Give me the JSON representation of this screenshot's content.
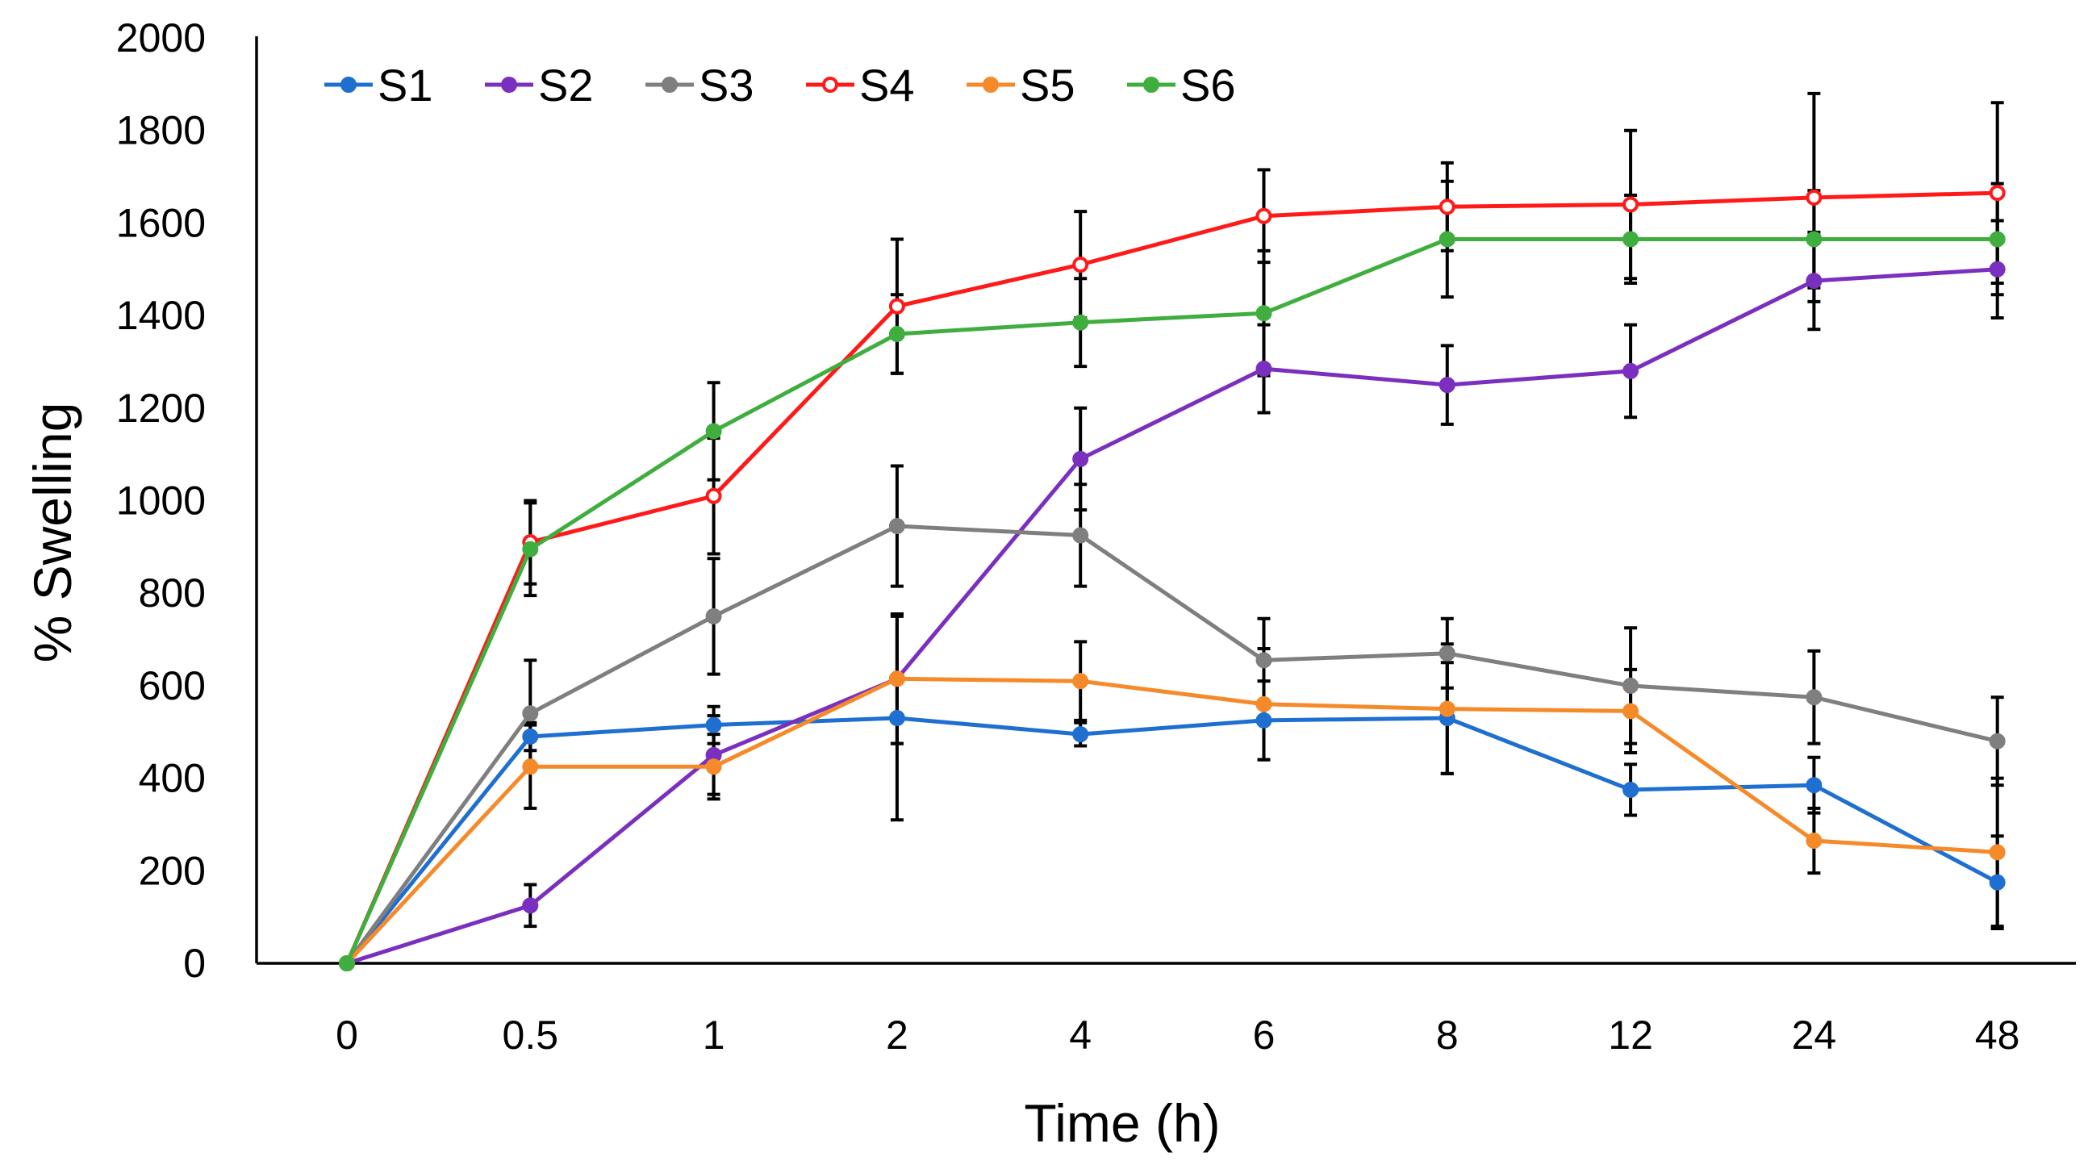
{
  "chart_data": {
    "type": "line",
    "title": "",
    "xlabel": "Time (h)",
    "ylabel": "% Swelling",
    "categories": [
      "0",
      "0.5",
      "1",
      "2",
      "4",
      "6",
      "8",
      "12",
      "24",
      "48"
    ],
    "y_ticks": [
      "0",
      "200",
      "400",
      "600",
      "800",
      "1000",
      "1200",
      "1400",
      "1600",
      "1800",
      "2000"
    ],
    "ylim": [
      0,
      2000
    ],
    "grid": false,
    "legend_position": "top-left",
    "series": [
      {
        "name": "S1",
        "color": "#1f6fd0",
        "marker": "filled-circle",
        "values": [
          0,
          490,
          515,
          530,
          495,
          525,
          530,
          375,
          385,
          175
        ],
        "errors": [
          0,
          30,
          40,
          220,
          25,
          85,
          120,
          55,
          60,
          100
        ]
      },
      {
        "name": "S2",
        "color": "#7b2fbe",
        "marker": "filled-circle",
        "values": [
          0,
          125,
          450,
          615,
          1090,
          1285,
          1250,
          1280,
          1475,
          1500
        ],
        "errors": [
          0,
          45,
          85,
          140,
          110,
          95,
          85,
          100,
          105,
          105
        ]
      },
      {
        "name": "S3",
        "color": "#7f7f7f",
        "marker": "filled-circle",
        "values": [
          0,
          540,
          750,
          945,
          925,
          655,
          670,
          600,
          575,
          480
        ],
        "errors": [
          0,
          115,
          125,
          130,
          110,
          90,
          75,
          125,
          100,
          95
        ]
      },
      {
        "name": "S4",
        "color": "#ff1a1a",
        "marker": "open-circle",
        "values": [
          0,
          910,
          1010,
          1420,
          1510,
          1615,
          1635,
          1640,
          1655,
          1665
        ],
        "errors": [
          0,
          90,
          125,
          145,
          115,
          100,
          95,
          160,
          225,
          195
        ]
      },
      {
        "name": "S5",
        "color": "#f58a2a",
        "marker": "filled-circle",
        "values": [
          0,
          425,
          425,
          615,
          610,
          560,
          550,
          545,
          265,
          240
        ],
        "errors": [
          0,
          90,
          70,
          140,
          85,
          120,
          140,
          90,
          70,
          160
        ]
      },
      {
        "name": "S6",
        "color": "#3fae3f",
        "marker": "filled-circle",
        "values": [
          0,
          895,
          1150,
          1360,
          1385,
          1405,
          1565,
          1565,
          1565,
          1565
        ],
        "errors": [
          0,
          100,
          105,
          85,
          95,
          135,
          125,
          95,
          105,
          120
        ]
      }
    ]
  }
}
